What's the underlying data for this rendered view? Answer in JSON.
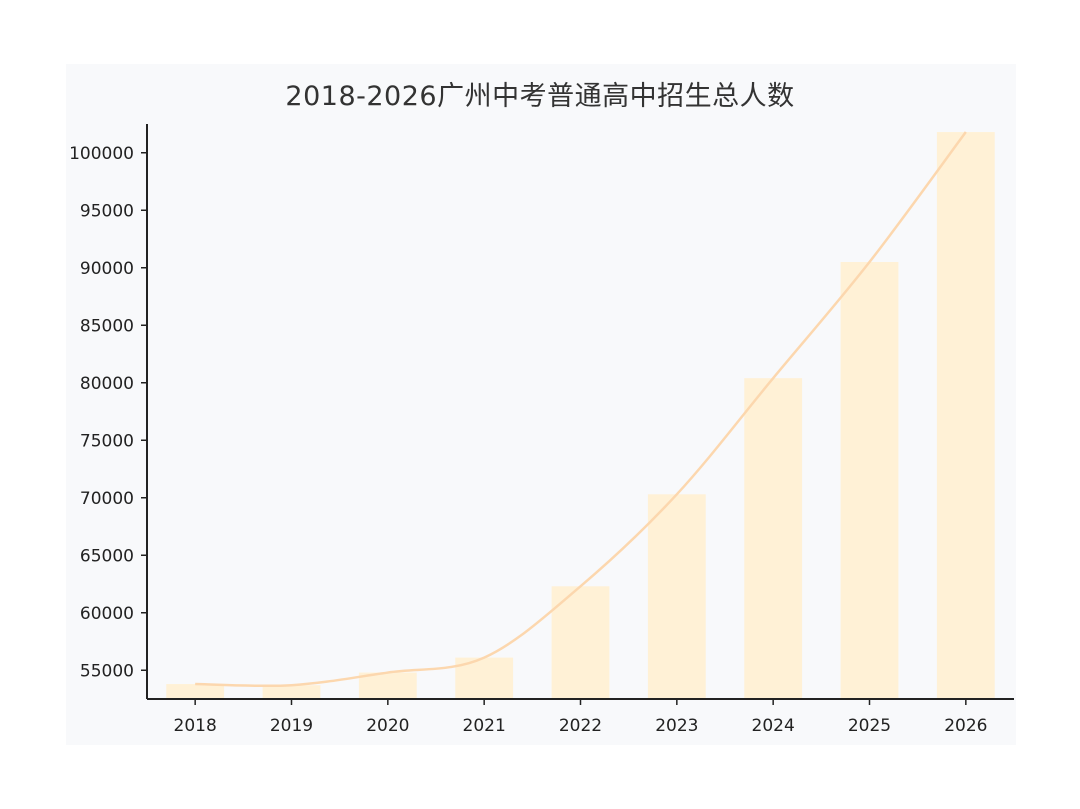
{
  "chart_data": {
    "type": "bar",
    "title": "2018-2026广州中考普通高中招生总人数",
    "categories": [
      "2018",
      "2019",
      "2020",
      "2021",
      "2022",
      "2023",
      "2024",
      "2025",
      "2026"
    ],
    "series": [
      {
        "type": "bar",
        "values": [
          53800,
          53700,
          54800,
          56100,
          62300,
          70300,
          80400,
          90500,
          101800
        ]
      },
      {
        "type": "line",
        "values": [
          53800,
          53700,
          54800,
          56100,
          62300,
          70300,
          80400,
          90500,
          101800
        ]
      }
    ],
    "ylim": [
      52500,
      102500
    ],
    "yticks": [
      55000,
      60000,
      65000,
      70000,
      75000,
      80000,
      85000,
      90000,
      95000,
      100000
    ],
    "xlabel": "",
    "ylabel": "",
    "grid": false,
    "colors": {
      "bar": "#fff1d6",
      "line": "#fcd7ae",
      "axis": "#222222",
      "panel": "#f8f9fb"
    }
  }
}
